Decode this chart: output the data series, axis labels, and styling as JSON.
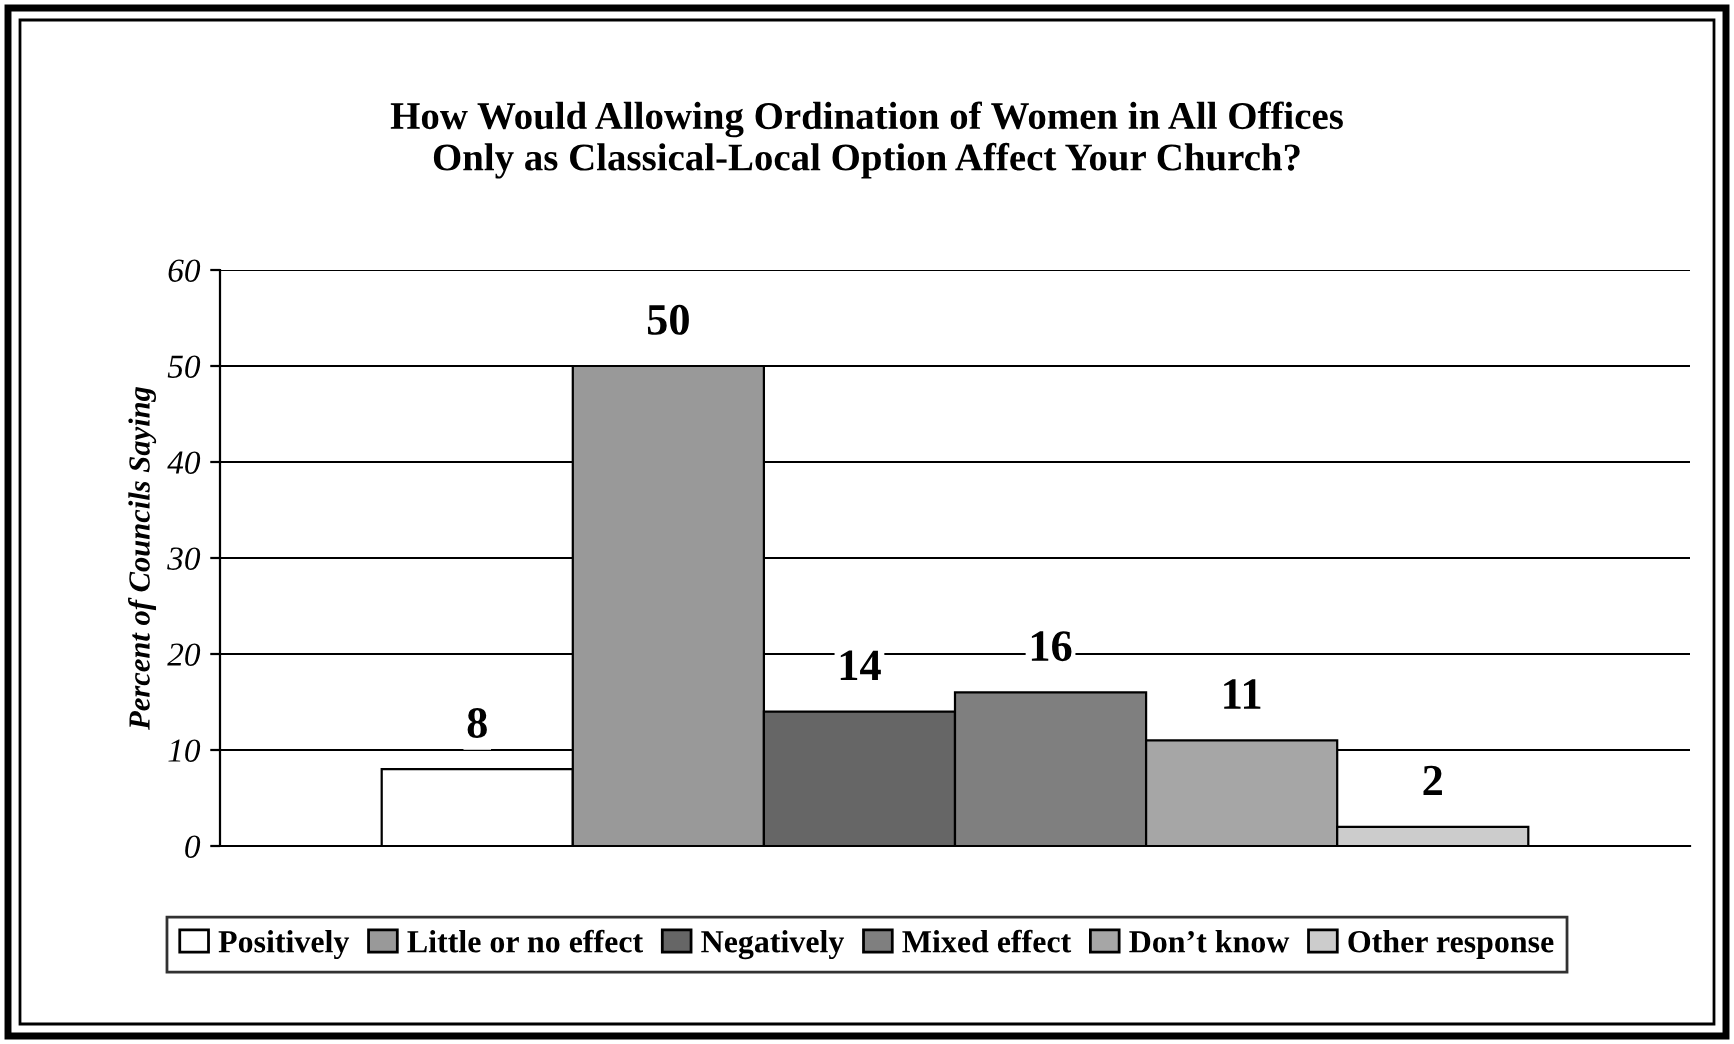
{
  "chart_data": {
    "type": "bar",
    "title": "How Would Allowing Ordination of Women in All Offices\nOnly as Classical-Local Option Affect Your Church?",
    "ylabel": "Percent of Councils Saying",
    "categories": [
      null
    ],
    "series": [
      {
        "name": "Positively",
        "color": "#ffffff",
        "values": [
          8
        ]
      },
      {
        "name": "Little or no effect",
        "color": "#999999",
        "values": [
          50
        ]
      },
      {
        "name": "Negatively",
        "color": "#666666",
        "values": [
          14
        ]
      },
      {
        "name": "Mixed effect",
        "color": "#7f7f7f",
        "values": [
          16
        ]
      },
      {
        "name": "Don’t know",
        "color": "#a6a6a6",
        "values": [
          11
        ]
      },
      {
        "name": "Other response",
        "color": "#cccccc",
        "values": [
          2
        ]
      }
    ],
    "ylim": [
      0,
      60
    ],
    "yticks": [
      0,
      10,
      20,
      30,
      40,
      50,
      60
    ],
    "grid": "y",
    "legend": "bottom",
    "data_labels": true
  }
}
